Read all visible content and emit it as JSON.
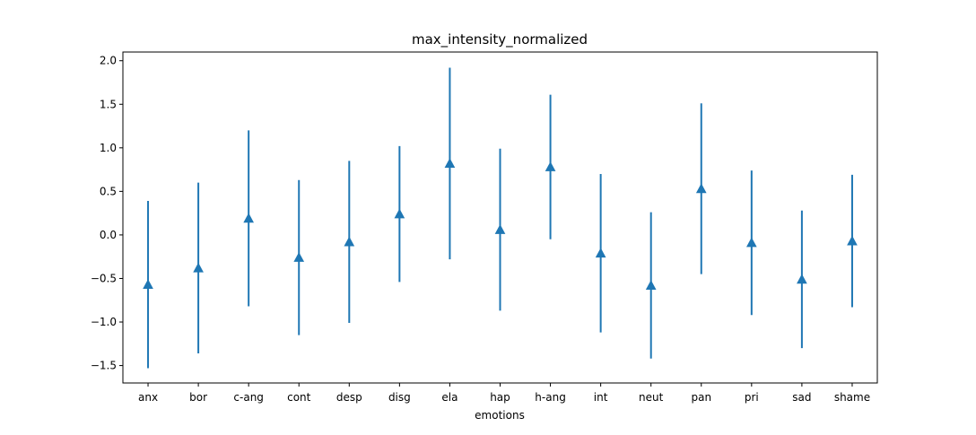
{
  "chart_data": {
    "type": "errorbar",
    "title": "max_intensity_normalized",
    "xlabel": "emotions",
    "ylabel": "",
    "categories": [
      "anx",
      "bor",
      "c-ang",
      "cont",
      "desp",
      "disg",
      "ela",
      "hap",
      "h-ang",
      "int",
      "neut",
      "pan",
      "pri",
      "sad",
      "shame"
    ],
    "means": [
      -0.57,
      -0.38,
      0.19,
      -0.26,
      -0.08,
      0.24,
      0.82,
      0.06,
      0.78,
      -0.21,
      -0.58,
      0.53,
      -0.09,
      -0.51,
      -0.07
    ],
    "errors": [
      0.96,
      0.98,
      1.01,
      0.89,
      0.93,
      0.78,
      1.1,
      0.93,
      0.83,
      0.91,
      0.84,
      0.98,
      0.83,
      0.79,
      0.76
    ],
    "ylim": [
      -1.7,
      2.1
    ],
    "yticks": [
      -1.5,
      -1.0,
      -0.5,
      0.0,
      0.5,
      1.0,
      1.5,
      2.0
    ],
    "ytick_labels": [
      "−1.5",
      "−1.0",
      "−0.5",
      "0.0",
      "0.5",
      "1.0",
      "1.5",
      "2.0"
    ],
    "marker": "triangle-up",
    "color": "#1f77b4",
    "grid": false,
    "legend": "none"
  }
}
